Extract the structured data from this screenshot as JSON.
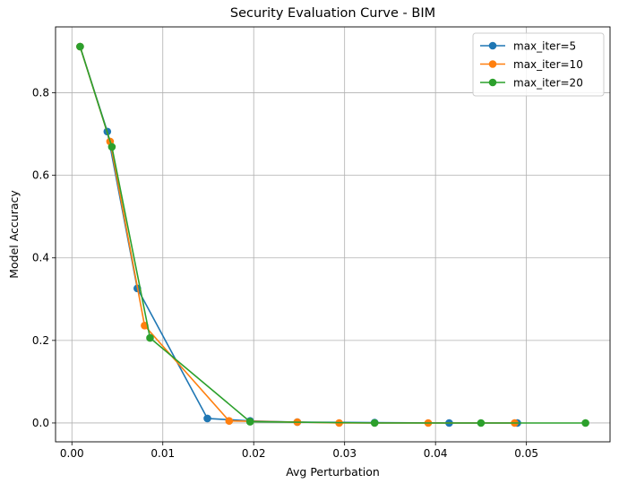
{
  "chart_data": {
    "type": "line",
    "title": "Security Evaluation Curve - BIM",
    "xlabel": "Avg Perturbation",
    "ylabel": "Model Accuracy",
    "xlim": [
      -0.0018,
      0.0592
    ],
    "ylim": [
      -0.0457,
      0.9597
    ],
    "xticks": [
      0.0,
      0.01,
      0.02,
      0.03,
      0.04,
      0.05
    ],
    "xtick_labels": [
      "0.00",
      "0.01",
      "0.02",
      "0.03",
      "0.04",
      "0.05"
    ],
    "yticks": [
      0.0,
      0.2,
      0.4,
      0.6,
      0.8
    ],
    "ytick_labels": [
      "0.0",
      "0.2",
      "0.4",
      "0.6",
      "0.8"
    ],
    "grid": true,
    "legend_position": "top-right",
    "series": [
      {
        "name": "max_iter=5",
        "color": "#1f77b4",
        "points": [
          [
            0.0009,
            0.912
          ],
          [
            0.0039,
            0.706
          ],
          [
            0.0072,
            0.326
          ],
          [
            0.0149,
            0.011
          ],
          [
            0.0196,
            0.005
          ],
          [
            0.0248,
            0.002
          ],
          [
            0.0333,
            0.001
          ],
          [
            0.0415,
            0.0
          ],
          [
            0.049,
            0.0
          ]
        ]
      },
      {
        "name": "max_iter=10",
        "color": "#ff7f0e",
        "points": [
          [
            0.0009,
            0.912
          ],
          [
            0.0042,
            0.682
          ],
          [
            0.008,
            0.236
          ],
          [
            0.0173,
            0.005
          ],
          [
            0.0248,
            0.002
          ],
          [
            0.0294,
            0.0
          ],
          [
            0.0392,
            0.0
          ],
          [
            0.0487,
            0.0
          ]
        ]
      },
      {
        "name": "max_iter=20",
        "color": "#2ca02c",
        "points": [
          [
            0.0009,
            0.912
          ],
          [
            0.0044,
            0.669
          ],
          [
            0.0086,
            0.206
          ],
          [
            0.0196,
            0.003
          ],
          [
            0.0333,
            0.0
          ],
          [
            0.045,
            0.0
          ],
          [
            0.0565,
            0.0
          ]
        ]
      }
    ]
  }
}
